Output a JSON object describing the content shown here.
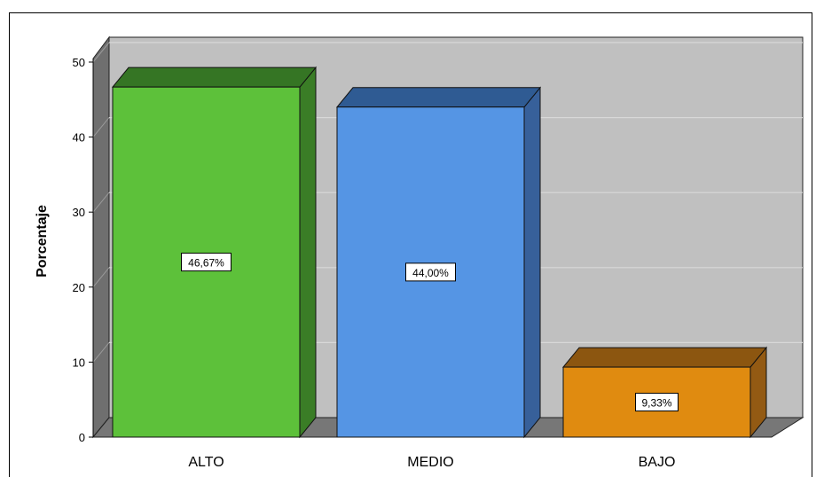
{
  "chart_data": {
    "type": "bar",
    "ylabel": "Porcentaje",
    "xlabel": "",
    "ylim": [
      0,
      50
    ],
    "yticks": [
      0,
      10,
      20,
      30,
      40,
      50
    ],
    "ytick_labels": [
      "0",
      "10",
      "20",
      "30",
      "40",
      "50"
    ],
    "categories": [
      "ALTO",
      "MEDIO",
      "BAJO"
    ],
    "values": [
      46.67,
      44.0,
      9.33
    ],
    "data_labels": [
      "46,67%",
      "44,00%",
      "9,33%"
    ],
    "grid": true,
    "style": "3d",
    "colors": {
      "plot_back": "#c0c0c0",
      "floor": "#777777",
      "wall_side": "#6f6f6f",
      "bars": [
        "#5dc13a",
        "#5595e4",
        "#e08b10"
      ],
      "bar_tops": [
        "#357524",
        "#2f5b93",
        "#8c5610"
      ],
      "bar_sides": [
        "#3a7d26",
        "#37609a",
        "#935a13"
      ]
    }
  }
}
